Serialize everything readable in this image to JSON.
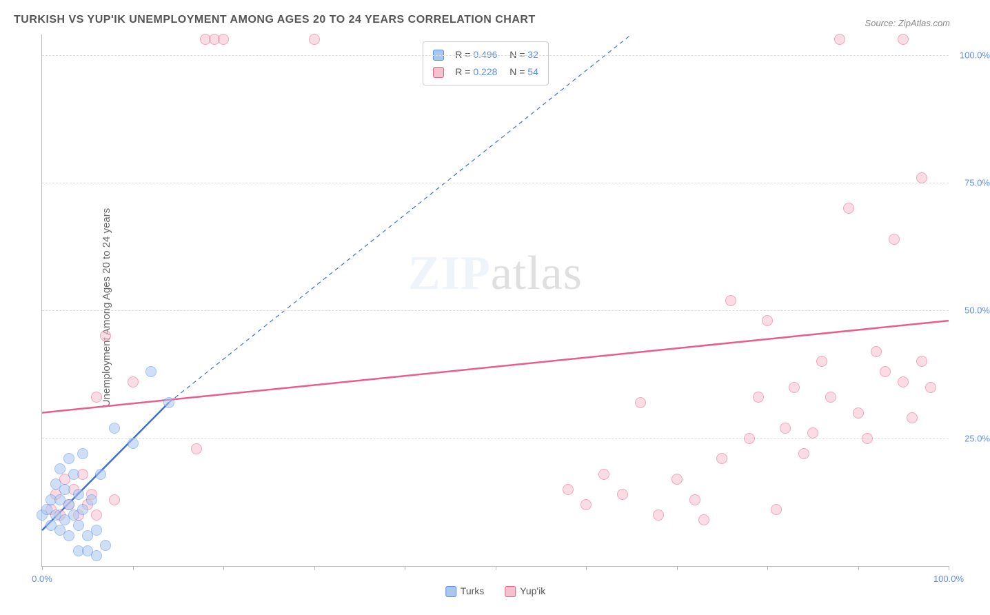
{
  "title": "TURKISH VS YUP'IK UNEMPLOYMENT AMONG AGES 20 TO 24 YEARS CORRELATION CHART",
  "source": "Source: ZipAtlas.com",
  "ylabel": "Unemployment Among Ages 20 to 24 years",
  "watermark": {
    "bold": "ZIP",
    "rest": "atlas"
  },
  "chart": {
    "type": "scatter",
    "xlim": [
      0,
      100
    ],
    "ylim": [
      0,
      104
    ],
    "background_color": "#ffffff",
    "grid_color": "#dddddd",
    "axis_color": "#bbbbbb",
    "tick_label_color": "#5b8def",
    "y_ticks": [
      {
        "v": 25,
        "label": "25.0%"
      },
      {
        "v": 50,
        "label": "50.0%"
      },
      {
        "v": 75,
        "label": "75.0%"
      },
      {
        "v": 100,
        "label": "100.0%"
      }
    ],
    "x_tick_positions": [
      0,
      10,
      20,
      30,
      40,
      50,
      60,
      70,
      80,
      90,
      100
    ],
    "x_labels": [
      {
        "v": 0,
        "label": "0.0%"
      },
      {
        "v": 100,
        "label": "100.0%"
      }
    ],
    "marker_radius": 8,
    "marker_opacity": 0.55,
    "series": [
      {
        "name": "Turks",
        "fill": "#a8c8f0",
        "stroke": "#5b8def",
        "stats": {
          "R": "0.496",
          "N": "32"
        },
        "trend": {
          "x1": 0,
          "y1": 7,
          "x2": 14,
          "y2": 32,
          "ext_x2": 65,
          "ext_y2": 104,
          "color": "#3e6fd6",
          "width": 2.5,
          "dash_ext": "6 5"
        },
        "points": [
          [
            0,
            10
          ],
          [
            0.5,
            11
          ],
          [
            1,
            8
          ],
          [
            1,
            13
          ],
          [
            1.5,
            10
          ],
          [
            1.5,
            16
          ],
          [
            2,
            7
          ],
          [
            2,
            13
          ],
          [
            2,
            19
          ],
          [
            2.5,
            9
          ],
          [
            2.5,
            15
          ],
          [
            3,
            6
          ],
          [
            3,
            12
          ],
          [
            3,
            21
          ],
          [
            3.5,
            10
          ],
          [
            3.5,
            18
          ],
          [
            4,
            3
          ],
          [
            4,
            8
          ],
          [
            4,
            14
          ],
          [
            4.5,
            11
          ],
          [
            4.5,
            22
          ],
          [
            5,
            6
          ],
          [
            5,
            3
          ],
          [
            5.5,
            13
          ],
          [
            6,
            7
          ],
          [
            6,
            2
          ],
          [
            6.5,
            18
          ],
          [
            7,
            4
          ],
          [
            8,
            27
          ],
          [
            10,
            24
          ],
          [
            12,
            38
          ],
          [
            14,
            32
          ]
        ]
      },
      {
        "name": "Yup'ik",
        "fill": "#f6c1cf",
        "stroke": "#e85d8a",
        "stats": {
          "R": "0.228",
          "N": "54"
        },
        "trend": {
          "x1": 0,
          "y1": 30,
          "x2": 100,
          "y2": 48,
          "color": "#e85d8a",
          "width": 2.5
        },
        "points": [
          [
            1,
            11
          ],
          [
            1.5,
            14
          ],
          [
            2,
            10
          ],
          [
            2.5,
            17
          ],
          [
            3,
            12
          ],
          [
            3.5,
            15
          ],
          [
            4,
            10
          ],
          [
            4.5,
            18
          ],
          [
            5,
            12
          ],
          [
            5.5,
            14
          ],
          [
            6,
            33
          ],
          [
            6,
            10
          ],
          [
            7,
            45
          ],
          [
            8,
            13
          ],
          [
            10,
            36
          ],
          [
            17,
            23
          ],
          [
            18,
            103
          ],
          [
            19,
            103
          ],
          [
            20,
            103
          ],
          [
            30,
            103
          ],
          [
            58,
            15
          ],
          [
            60,
            12
          ],
          [
            62,
            18
          ],
          [
            64,
            14
          ],
          [
            66,
            32
          ],
          [
            68,
            10
          ],
          [
            70,
            17
          ],
          [
            72,
            13
          ],
          [
            73,
            9
          ],
          [
            75,
            21
          ],
          [
            76,
            52
          ],
          [
            78,
            25
          ],
          [
            79,
            33
          ],
          [
            80,
            48
          ],
          [
            81,
            11
          ],
          [
            82,
            27
          ],
          [
            83,
            35
          ],
          [
            84,
            22
          ],
          [
            85,
            26
          ],
          [
            86,
            40
          ],
          [
            87,
            33
          ],
          [
            88,
            103
          ],
          [
            89,
            70
          ],
          [
            90,
            30
          ],
          [
            91,
            25
          ],
          [
            92,
            42
          ],
          [
            93,
            38
          ],
          [
            94,
            64
          ],
          [
            95,
            103
          ],
          [
            95,
            36
          ],
          [
            96,
            29
          ],
          [
            97,
            40
          ],
          [
            97,
            76
          ],
          [
            98,
            35
          ]
        ]
      }
    ]
  },
  "legend": {
    "items": [
      {
        "label": "Turks",
        "fill": "#a8c8f0",
        "stroke": "#5b8def"
      },
      {
        "label": "Yup'ik",
        "fill": "#f6c1cf",
        "stroke": "#e85d8a"
      }
    ]
  }
}
